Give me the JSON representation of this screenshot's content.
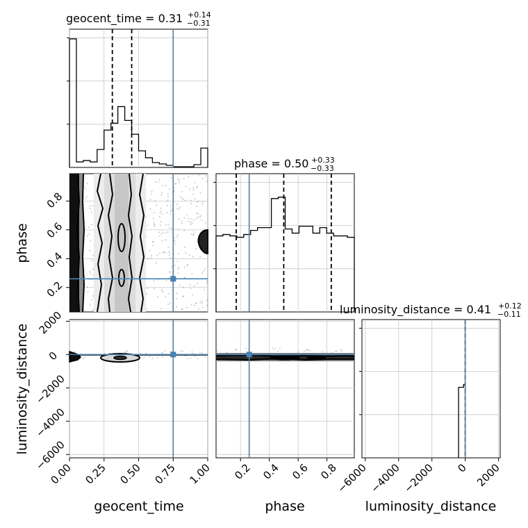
{
  "colors": {
    "truth": "#4682b4",
    "hist": "#000000",
    "grid": "#c8c8c8",
    "scatter": "#9a9a9a"
  },
  "params": [
    "geocent_time",
    "phase",
    "luminosity_distance"
  ],
  "titles": [
    {
      "name": "geocent_time",
      "base": "geocent_time = 0.31",
      "plus": "+0.14",
      "minus": "−0.31"
    },
    {
      "name": "phase",
      "base": "phase = 0.50",
      "plus": "+0.33",
      "minus": "−0.33"
    },
    {
      "name": "luminosity_distance",
      "base": "luminosity_distance = 0.41",
      "plus": "+0.12",
      "minus": "−0.11"
    }
  ],
  "axis_labels": {
    "x": [
      "geocent_time",
      "phase",
      "luminosity_distance"
    ],
    "y": [
      "phase",
      "luminosity_distance"
    ]
  },
  "ticks": {
    "geocent_time": [
      "0.00",
      "0.25",
      "0.50",
      "0.75",
      "1.00"
    ],
    "phase": [
      "0.2",
      "0.4",
      "0.6",
      "0.8"
    ],
    "luminosity_distance": [
      "−6000",
      "−4000",
      "−2000",
      "0",
      "2000"
    ]
  },
  "chart_data": {
    "type": "corner",
    "parameters": [
      "geocent_time",
      "phase",
      "luminosity_distance"
    ],
    "ranges": {
      "geocent_time": [
        0.0,
        1.0
      ],
      "phase": [
        0.03,
        0.99
      ],
      "luminosity_distance": [
        -6200,
        2100
      ]
    },
    "truths": {
      "geocent_time": 0.75,
      "phase": 0.26,
      "luminosity_distance": 0
    },
    "quantiles": {
      "geocent_time": [
        0.31,
        0.45
      ],
      "phase": [
        0.17,
        0.5,
        0.83
      ],
      "luminosity_distance": [
        0.41
      ]
    },
    "histograms": {
      "geocent_time": {
        "edges": [
          0.0,
          0.05,
          0.1,
          0.15,
          0.2,
          0.25,
          0.3,
          0.35,
          0.4,
          0.45,
          0.5,
          0.55,
          0.6,
          0.65,
          0.7,
          0.75,
          0.8,
          0.85,
          0.9,
          0.95,
          1.0
        ],
        "values": [
          0.93,
          0.04,
          0.05,
          0.04,
          0.13,
          0.27,
          0.32,
          0.44,
          0.34,
          0.24,
          0.12,
          0.07,
          0.035,
          0.025,
          0.015,
          0.005,
          0.005,
          0.005,
          0.02,
          0.14
        ]
      },
      "phase": {
        "edges": [
          0.03,
          0.078,
          0.126,
          0.174,
          0.222,
          0.27,
          0.318,
          0.366,
          0.414,
          0.462,
          0.51,
          0.558,
          0.606,
          0.654,
          0.702,
          0.75,
          0.798,
          0.846,
          0.894,
          0.942,
          0.99
        ],
        "values": [
          0.55,
          0.56,
          0.55,
          0.54,
          0.56,
          0.59,
          0.61,
          0.61,
          0.82,
          0.83,
          0.6,
          0.57,
          0.62,
          0.62,
          0.57,
          0.61,
          0.57,
          0.55,
          0.55,
          0.54
        ]
      },
      "luminosity_distance": {
        "edges": [
          -400,
          -100,
          0
        ],
        "values": [
          0.51,
          0.53
        ]
      }
    },
    "contours_2d": [
      {
        "x": "geocent_time",
        "y": "phase",
        "description": "vertical bands at geocent_time 0.0-0.07 and 0.2-0.5; blob at geocent_time 1.0, phase 0.5"
      },
      {
        "x": "geocent_time",
        "y": "luminosity_distance",
        "description": "thin band near luminosity_distance 0"
      },
      {
        "x": "phase",
        "y": "luminosity_distance",
        "description": "thin band near luminosity_distance 0"
      }
    ]
  }
}
